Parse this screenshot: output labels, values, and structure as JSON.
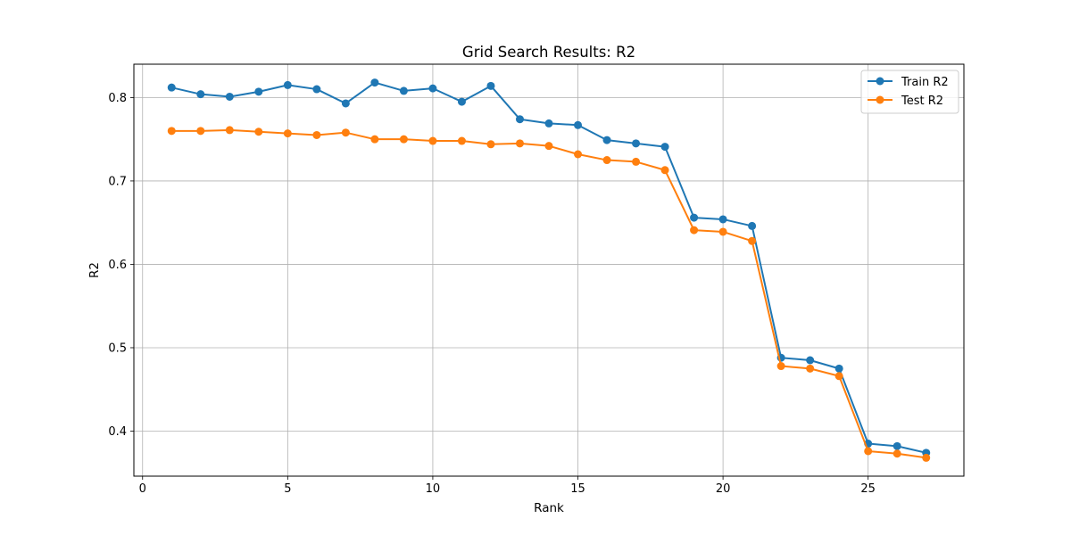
{
  "chart_data": {
    "type": "line",
    "title": "Grid Search Results: R2",
    "xlabel": "Rank",
    "ylabel": "R2",
    "xlim": [
      -0.3,
      28.3
    ],
    "ylim": [
      0.346,
      0.84
    ],
    "xticks": [
      0,
      5,
      10,
      15,
      20,
      25
    ],
    "yticks": [
      0.4,
      0.5,
      0.6,
      0.7,
      0.8
    ],
    "ytick_labels": [
      "0.4",
      "0.5",
      "0.6",
      "0.7",
      "0.8"
    ],
    "grid": true,
    "legend_position": "top-right",
    "x": [
      1,
      2,
      3,
      4,
      5,
      6,
      7,
      8,
      9,
      10,
      11,
      12,
      13,
      14,
      15,
      16,
      17,
      18,
      19,
      20,
      21,
      22,
      23,
      24,
      25,
      26,
      27
    ],
    "series": [
      {
        "name": "Train R2",
        "color": "#1f77b4",
        "values": [
          0.812,
          0.804,
          0.801,
          0.807,
          0.815,
          0.81,
          0.793,
          0.818,
          0.808,
          0.811,
          0.795,
          0.814,
          0.774,
          0.769,
          0.767,
          0.749,
          0.745,
          0.741,
          0.656,
          0.654,
          0.646,
          0.488,
          0.485,
          0.475,
          0.385,
          0.382,
          0.374
        ]
      },
      {
        "name": "Test R2",
        "color": "#ff7f0e",
        "values": [
          0.76,
          0.76,
          0.761,
          0.759,
          0.757,
          0.755,
          0.758,
          0.75,
          0.75,
          0.748,
          0.748,
          0.744,
          0.745,
          0.742,
          0.732,
          0.725,
          0.723,
          0.713,
          0.641,
          0.639,
          0.628,
          0.478,
          0.475,
          0.466,
          0.376,
          0.373,
          0.368
        ]
      }
    ]
  }
}
